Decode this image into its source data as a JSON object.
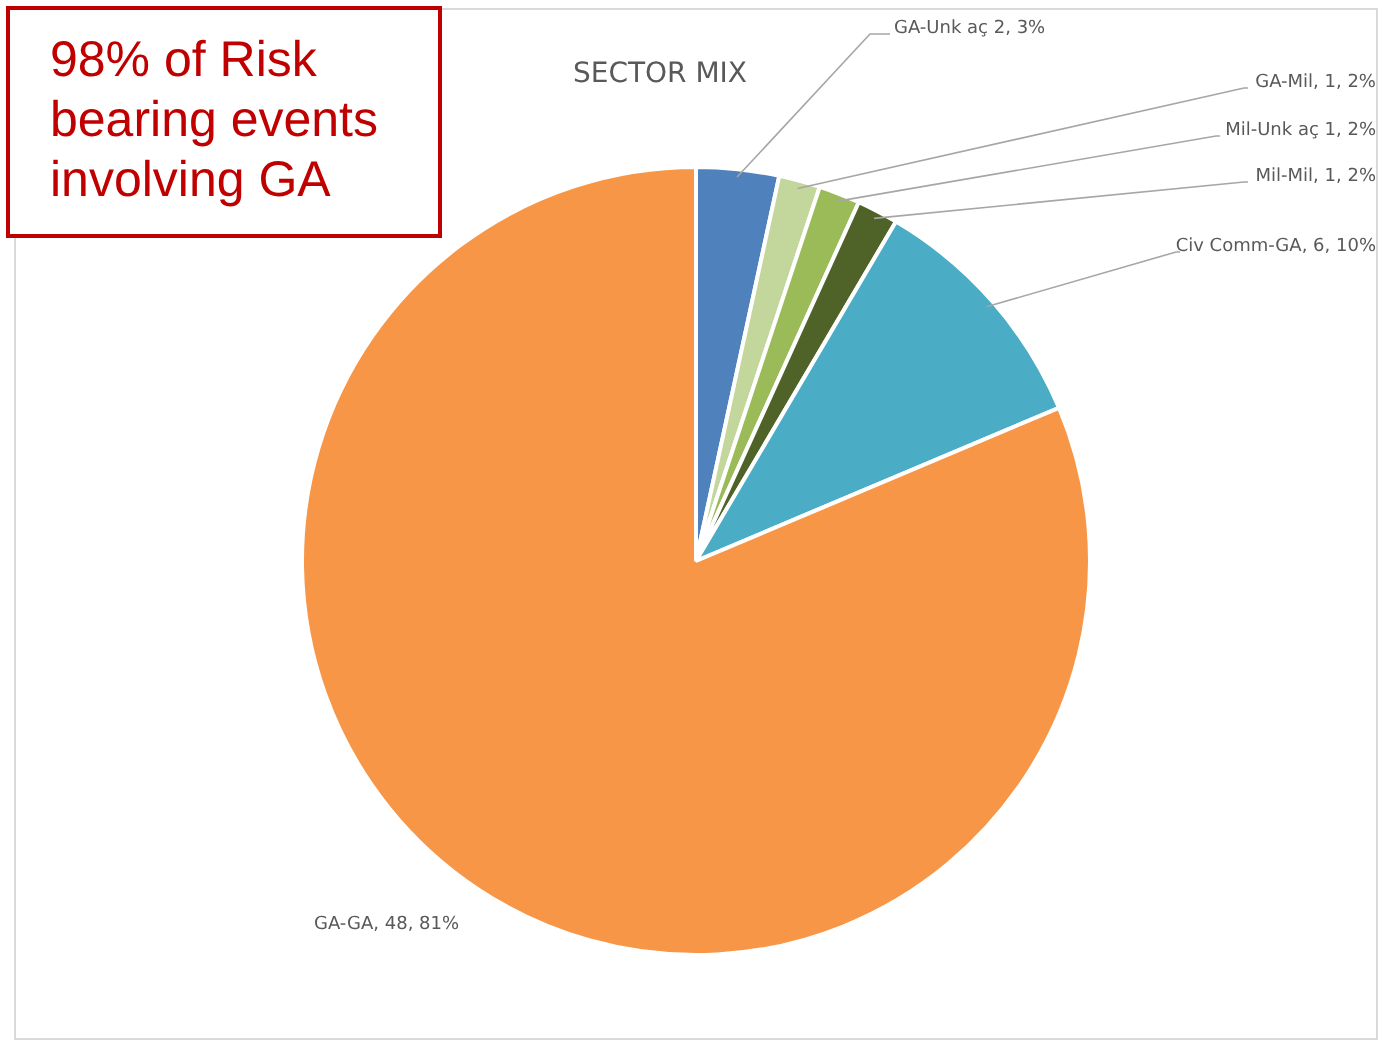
{
  "chart_data": {
    "type": "pie",
    "title": "SECTOR MIX",
    "categories": [
      "GA-Unk aç 2, 3%",
      "GA-Mil, 1, 2%",
      "Mil-Unk aç 1, 2%",
      "Mil-Mil, 1, 2%",
      "Civ Comm-GA, 6, 10%",
      "GA-GA, 48, 81%"
    ],
    "values": [
      2,
      1,
      1,
      1,
      6,
      48
    ],
    "colors": [
      "#4f81bd",
      "#c3d69b",
      "#9bbb59",
      "#4f6228",
      "#4bacc6",
      "#f79646"
    ],
    "annotations": [
      "98% of Risk bearing events involving GA"
    ],
    "legend": false
  }
}
